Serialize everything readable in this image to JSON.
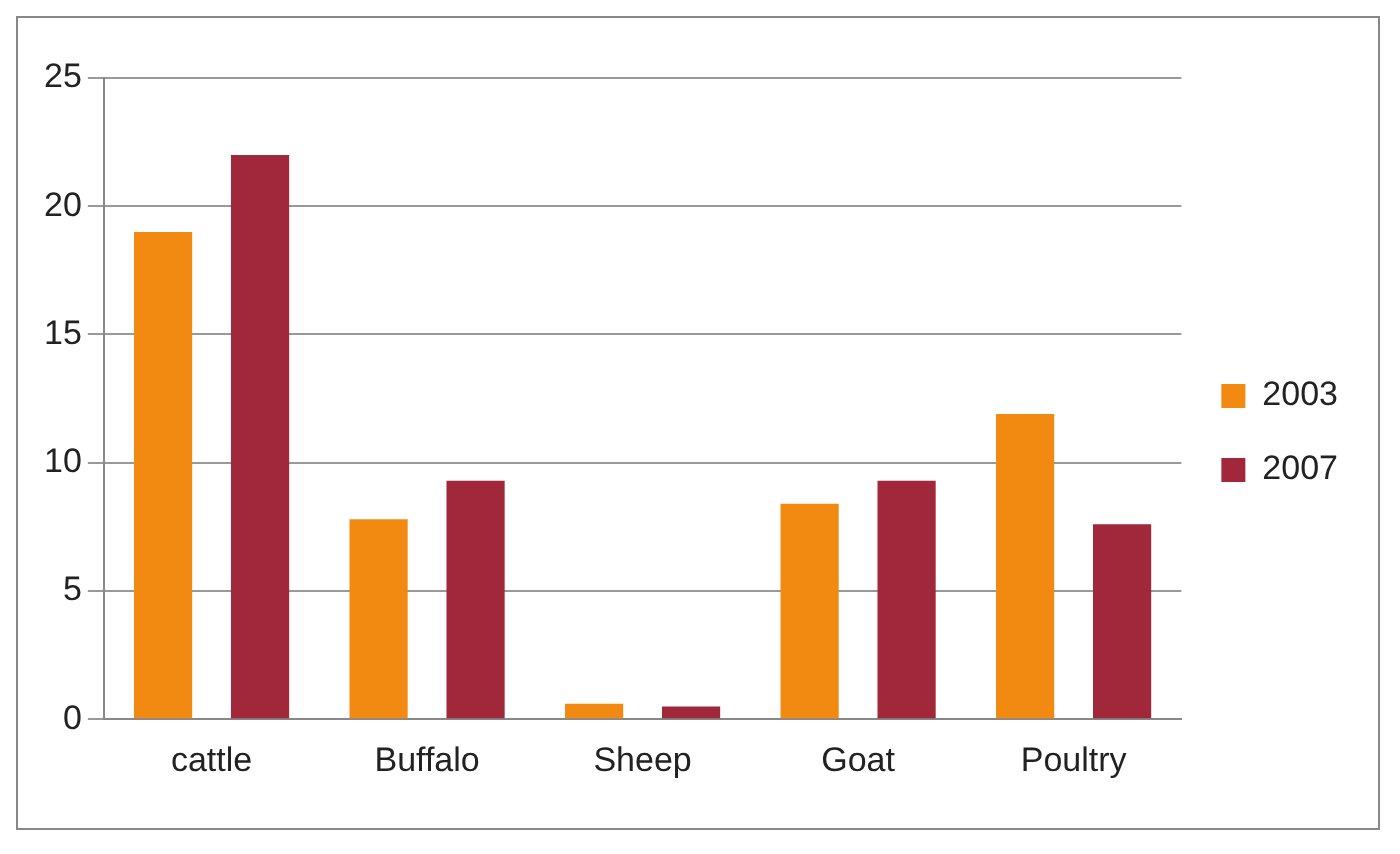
{
  "chart_data": {
    "type": "bar",
    "categories": [
      "cattle",
      "Buffalo",
      "Sheep",
      "Goat",
      "Poultry"
    ],
    "series": [
      {
        "name": "2003",
        "color": "#f28a12",
        "values": [
          19,
          7.8,
          0.6,
          8.4,
          11.9
        ]
      },
      {
        "name": "2007",
        "color": "#a0283a",
        "values": [
          22,
          9.3,
          0.5,
          9.3,
          7.6
        ]
      }
    ],
    "ylim": [
      0,
      25
    ],
    "yticks": [
      0,
      5,
      10,
      15,
      20,
      25
    ],
    "grid": "y",
    "legend": "right"
  }
}
